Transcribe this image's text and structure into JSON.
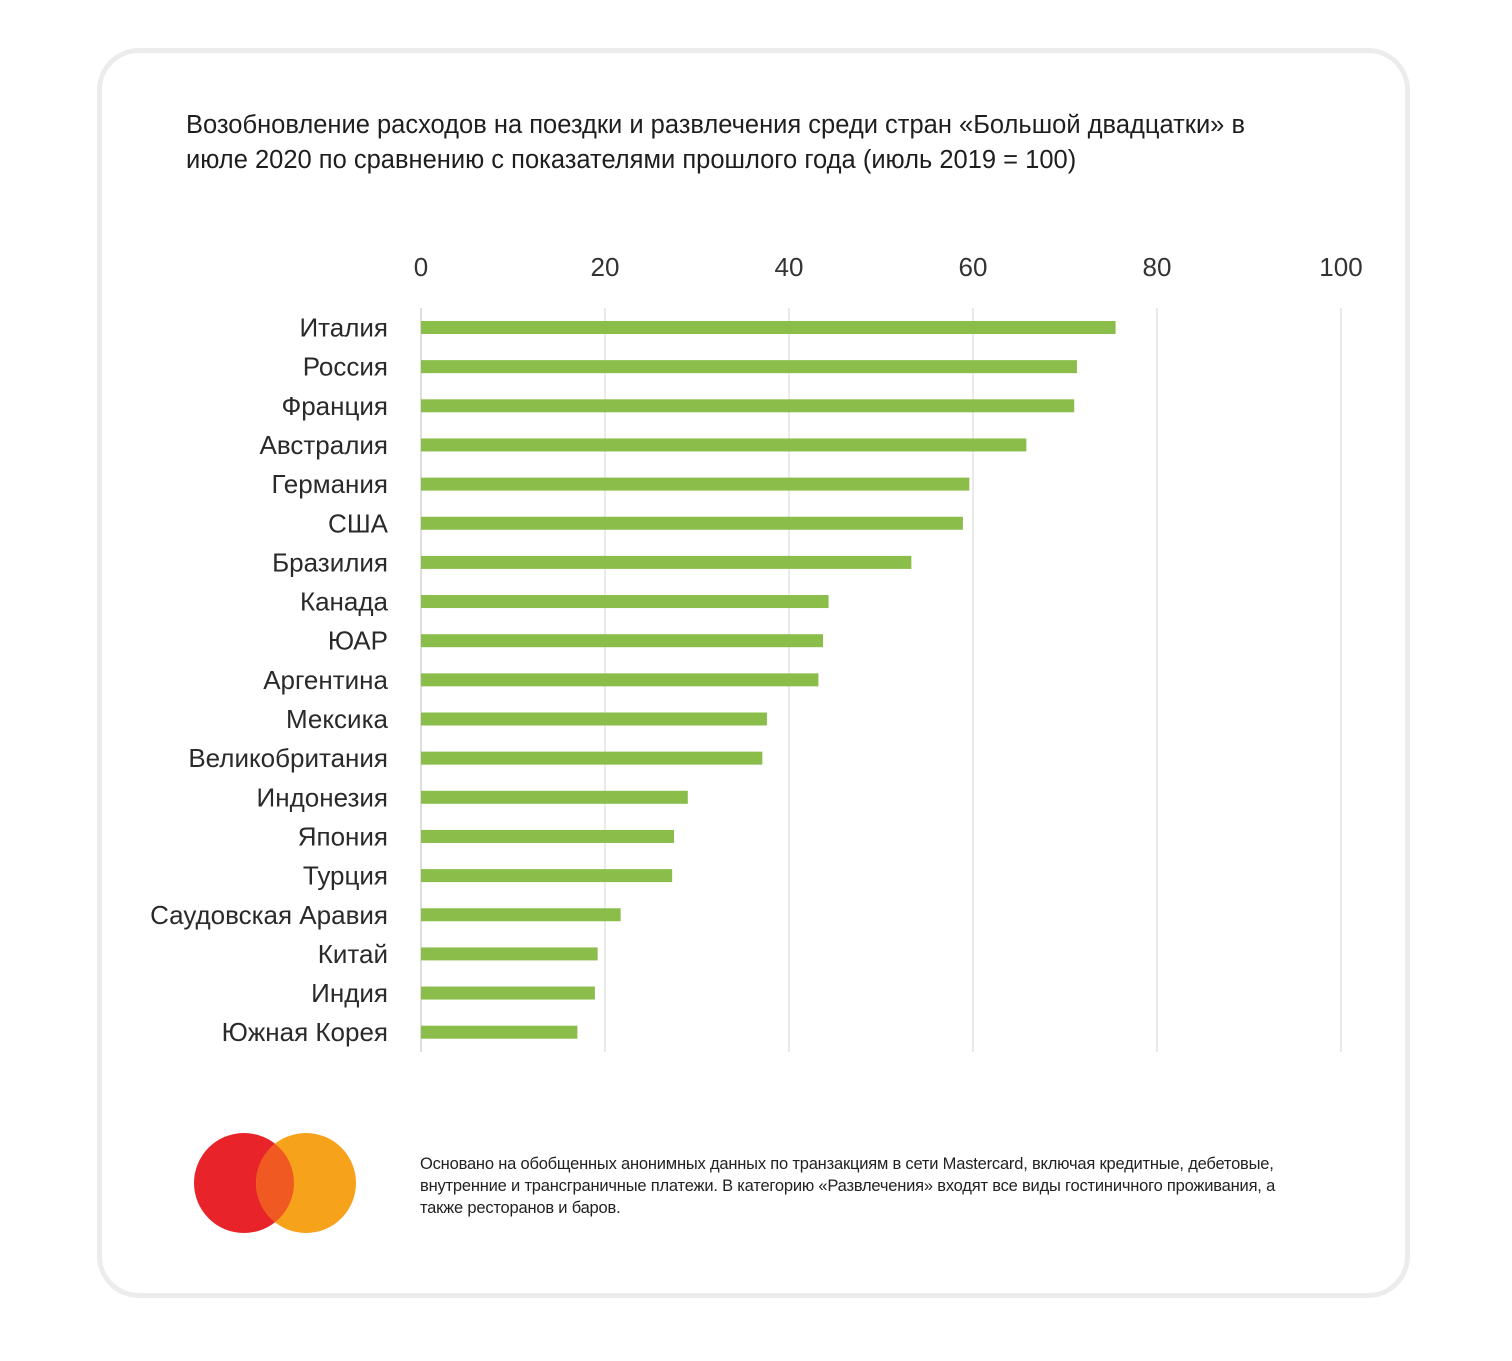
{
  "chart_data": {
    "type": "bar",
    "orientation": "horizontal",
    "title": "Возобновление расходов на поездки и развлечения среди стран «Большой двадцатки» в июле 2020 по сравнению с показателями прошлого года (июль 2019 = 100)",
    "xlim": [
      0,
      100
    ],
    "x_ticks": [
      "0",
      "20",
      "40",
      "60",
      "80",
      "100"
    ],
    "x_tick_values": [
      0,
      20,
      40,
      60,
      80,
      100
    ],
    "xlabel": "",
    "ylabel": "",
    "grid": true,
    "bar_color": "#8bbd4a",
    "categories": [
      "Италия",
      "Россия",
      "Франция",
      "Австралия",
      "Германия",
      "США",
      "Бразилия",
      "Канада",
      "ЮАР",
      "Аргентина",
      "Мексика",
      "Великобритания",
      "Индонезия",
      "Япония",
      "Турция",
      "Саудовская Аравия",
      "Китай",
      "Индия",
      "Южная Корея"
    ],
    "values": [
      75.5,
      71.3,
      71,
      65.8,
      59.6,
      58.9,
      53.3,
      44.3,
      43.7,
      43.2,
      37.6,
      37.1,
      29,
      27.5,
      27.3,
      21.7,
      19.2,
      18.9,
      17
    ]
  },
  "footnote": "Основано на обобщенных анонимных данных по транзакциям в сети Mastercard, включая кредитные, дебетовые, внутренние и трансграничные платежи. В категорию «Развлечения» входят все виды гостиничного проживания, а также ресторанов и баров.",
  "logo": {
    "icon": "mastercard-logo-icon",
    "colors": {
      "left": "#e8232a",
      "right": "#f7a21b",
      "overlap": "#f05a22"
    }
  }
}
